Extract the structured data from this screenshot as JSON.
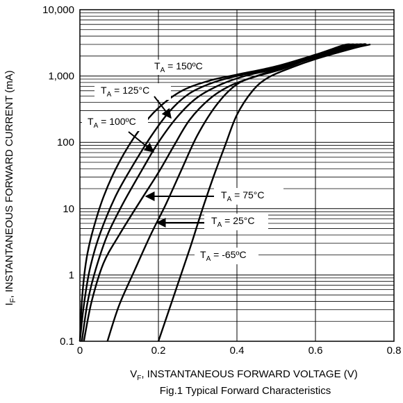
{
  "chart_data": {
    "type": "line",
    "title": "",
    "caption": "Fig.1 Typical Forward Characteristics",
    "xlabel": {
      "prefix": "V",
      "sub": "F",
      "suffix": ", INSTANTANEOUS FORWARD VOLTAGE (V)"
    },
    "ylabel": {
      "prefix": "I",
      "sub": "F",
      "suffix": ", INSTANTANEOUS FORWARD CURRENT (mA)"
    },
    "xlim": [
      0,
      0.8
    ],
    "ylim": [
      0.1,
      10000
    ],
    "yscale": "log",
    "grid": true,
    "xticks": [
      {
        "v": 0,
        "label": "0"
      },
      {
        "v": 0.2,
        "label": "0.2"
      },
      {
        "v": 0.4,
        "label": "0.4"
      },
      {
        "v": 0.6,
        "label": "0.6"
      },
      {
        "v": 0.8,
        "label": "0.8"
      }
    ],
    "yticks": [
      {
        "v": 0.1,
        "label": "0.1"
      },
      {
        "v": 1,
        "label": "1"
      },
      {
        "v": 10,
        "label": "10"
      },
      {
        "v": 100,
        "label": "100"
      },
      {
        "v": 1000,
        "label": "1,000"
      },
      {
        "v": 10000,
        "label": "10,000"
      }
    ],
    "series": [
      {
        "label": {
          "T": "T",
          "sub": "A",
          "text": " = 150ºC"
        },
        "x": [
          0.0,
          0.005,
          0.015,
          0.03,
          0.06,
          0.1,
          0.15,
          0.2,
          0.26,
          0.33,
          0.4,
          0.5,
          0.6,
          0.67,
          0.69
        ],
        "y": [
          0.1,
          0.4,
          1.5,
          4,
          15,
          50,
          150,
          330,
          600,
          850,
          1050,
          1400,
          2100,
          2900,
          3000
        ]
      },
      {
        "label": {
          "T": "T",
          "sub": "A",
          "text": " = 125°C"
        },
        "x": [
          0.0,
          0.01,
          0.025,
          0.05,
          0.09,
          0.13,
          0.18,
          0.23,
          0.28,
          0.34,
          0.4,
          0.5,
          0.6,
          0.68,
          0.7
        ],
        "y": [
          0.1,
          0.35,
          1.2,
          4,
          15,
          40,
          120,
          300,
          550,
          800,
          1000,
          1350,
          2050,
          2900,
          3000
        ]
      },
      {
        "label": {
          "T": "T",
          "sub": "A",
          "text": " = 100ºC"
        },
        "x": [
          0.005,
          0.02,
          0.04,
          0.07,
          0.11,
          0.16,
          0.2,
          0.25,
          0.3,
          0.36,
          0.42,
          0.5,
          0.6,
          0.69,
          0.71
        ],
        "y": [
          0.1,
          0.4,
          1.2,
          4,
          12,
          40,
          100,
          250,
          480,
          750,
          1000,
          1300,
          2000,
          2900,
          3000
        ]
      },
      {
        "label": {
          "T": "T",
          "sub": "A",
          "text": " = 75°C"
        },
        "x": [
          0.01,
          0.03,
          0.06,
          0.1,
          0.15,
          0.2,
          0.24,
          0.28,
          0.33,
          0.38,
          0.44,
          0.52,
          0.6,
          0.7,
          0.72
        ],
        "y": [
          0.1,
          0.4,
          1.5,
          4,
          12,
          35,
          90,
          220,
          450,
          700,
          950,
          1300,
          1950,
          2900,
          3000
        ]
      },
      {
        "label": {
          "T": "T",
          "sub": "A",
          "text": " = 25°C"
        },
        "x": [
          0.07,
          0.1,
          0.14,
          0.18,
          0.22,
          0.26,
          0.3,
          0.35,
          0.4,
          0.46,
          0.52,
          0.6,
          0.71,
          0.73
        ],
        "y": [
          0.1,
          0.35,
          1.2,
          4,
          12,
          40,
          130,
          380,
          750,
          1050,
          1350,
          1900,
          2900,
          3000
        ]
      },
      {
        "label": {
          "T": "T",
          "sub": "A",
          "text": " = -65ºC"
        },
        "x": [
          0.2,
          0.24,
          0.28,
          0.31,
          0.34,
          0.37,
          0.4,
          0.44,
          0.48,
          0.54,
          0.6,
          0.7,
          0.74
        ],
        "y": [
          0.1,
          0.5,
          2.5,
          9,
          30,
          90,
          260,
          600,
          950,
          1350,
          1800,
          2650,
          3000
        ]
      }
    ]
  }
}
